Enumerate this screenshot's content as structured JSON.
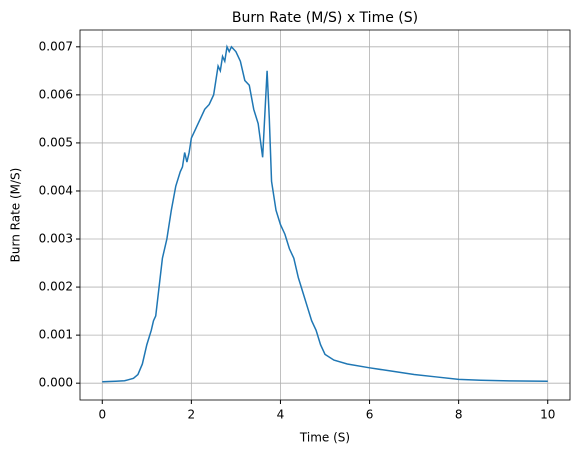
{
  "chart_data": {
    "type": "line",
    "title": "Burn Rate (M/S) x Time (S)",
    "xlabel": "Time (S)",
    "ylabel": "Burn Rate (M/S)",
    "x": [
      0,
      0.3,
      0.5,
      0.7,
      0.8,
      0.9,
      1.0,
      1.1,
      1.15,
      1.2,
      1.3,
      1.35,
      1.45,
      1.55,
      1.65,
      1.75,
      1.8,
      1.85,
      1.9,
      1.95,
      2.0,
      2.1,
      2.2,
      2.3,
      2.4,
      2.5,
      2.55,
      2.6,
      2.65,
      2.7,
      2.75,
      2.8,
      2.85,
      2.9,
      3.0,
      3.1,
      3.2,
      3.3,
      3.4,
      3.5,
      3.6,
      3.65,
      3.7,
      3.75,
      3.8,
      3.9,
      4.0,
      4.1,
      4.2,
      4.3,
      4.4,
      4.5,
      4.6,
      4.7,
      4.8,
      4.9,
      5.0,
      5.2,
      5.5,
      6.0,
      6.5,
      7.0,
      7.5,
      8.0,
      8.5,
      9.0,
      10
    ],
    "series": [
      {
        "color": "#1f77b4",
        "values": [
          3e-05,
          4e-05,
          5e-05,
          0.0001,
          0.00018,
          0.0004,
          0.0008,
          0.0011,
          0.0013,
          0.0014,
          0.0022,
          0.0026,
          0.003,
          0.0036,
          0.0041,
          0.0044,
          0.0045,
          0.0048,
          0.0046,
          0.0048,
          0.0051,
          0.0053,
          0.0055,
          0.0057,
          0.0058,
          0.006,
          0.0063,
          0.0066,
          0.0065,
          0.0068,
          0.0067,
          0.007,
          0.0069,
          0.007,
          0.0069,
          0.0067,
          0.0063,
          0.0062,
          0.0057,
          0.0054,
          0.0047,
          0.0056,
          0.0065,
          0.0055,
          0.0042,
          0.0036,
          0.0033,
          0.0031,
          0.0028,
          0.0026,
          0.0022,
          0.0019,
          0.0016,
          0.0013,
          0.0011,
          0.0008,
          0.0006,
          0.00048,
          0.0004,
          0.00032,
          0.00025,
          0.00018,
          0.00013,
          8e-05,
          6e-05,
          5e-05,
          4e-05
        ]
      }
    ],
    "xlim": [
      -0.5,
      10.5
    ],
    "xticks": [
      0,
      2,
      4,
      6,
      8,
      10
    ],
    "ylim": [
      -0.00035,
      0.00735
    ],
    "yticks": [
      {
        "value": 0,
        "label": "0.000"
      },
      {
        "value": 0.001,
        "label": "0.001"
      },
      {
        "value": 0.002,
        "label": "0.002"
      },
      {
        "value": 0.003,
        "label": "0.003"
      },
      {
        "value": 0.004,
        "label": "0.004"
      },
      {
        "value": 0.005,
        "label": "0.005"
      },
      {
        "value": 0.006,
        "label": "0.006"
      },
      {
        "value": 0.007,
        "label": "0.007"
      }
    ],
    "grid": true
  }
}
